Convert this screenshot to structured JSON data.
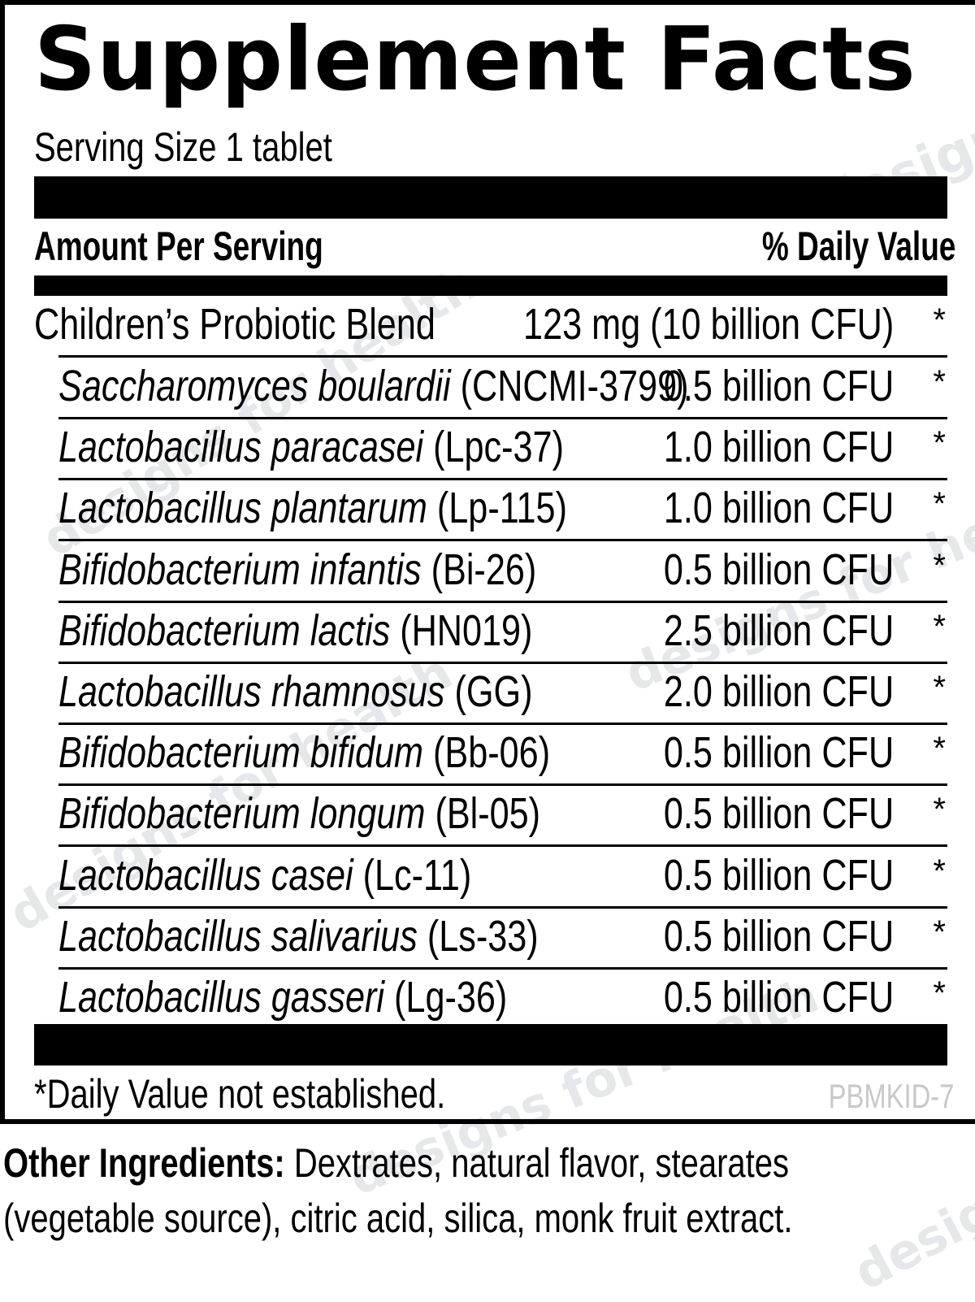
{
  "label": {
    "title": "Supplement Facts",
    "serving_size": "Serving Size 1 tablet",
    "header": {
      "amount_per_serving": "Amount Per Serving",
      "daily_value": "% Daily Value"
    },
    "blend": {
      "name": "Children’s Probiotic Blend",
      "amount": "123 mg (10 billion CFU)",
      "dv": "*"
    },
    "ingredients": [
      {
        "species": "Saccharomyces boulardii",
        "strain": "(CNCMI-3799)",
        "amount": "0.5 billion CFU",
        "dv": "*"
      },
      {
        "species": "Lactobacillus paracasei",
        "strain": "(Lpc-37)",
        "amount": "1.0 billion CFU",
        "dv": "*"
      },
      {
        "species": "Lactobacillus plantarum",
        "strain": "(Lp-115)",
        "amount": "1.0 billion CFU",
        "dv": "*"
      },
      {
        "species": "Bifidobacterium infantis",
        "strain": "(Bi-26)",
        "amount": "0.5 billion CFU",
        "dv": "*"
      },
      {
        "species": "Bifidobacterium lactis",
        "strain": "(HN019)",
        "amount": "2.5 billion CFU",
        "dv": "*"
      },
      {
        "species": "Lactobacillus rhamnosus",
        "strain": "(GG)",
        "amount": "2.0 billion CFU",
        "dv": "*"
      },
      {
        "species": "Bifidobacterium bifidum",
        "strain": "(Bb-06)",
        "amount": "0.5 billion CFU",
        "dv": "*"
      },
      {
        "species": "Bifidobacterium longum",
        "strain": "(Bl-05)",
        "amount": "0.5 billion CFU",
        "dv": "*"
      },
      {
        "species": "Lactobacillus casei",
        "strain": "(Lc-11)",
        "amount": "0.5 billion CFU",
        "dv": "*"
      },
      {
        "species": "Lactobacillus salivarius",
        "strain": "(Ls-33)",
        "amount": "0.5 billion CFU",
        "dv": "*"
      },
      {
        "species": "Lactobacillus gasseri",
        "strain": "(Lg-36)",
        "amount": "0.5 billion CFU",
        "dv": "*"
      }
    ],
    "footnote": "*Daily Value not established.",
    "product_code": "PBMKID-7"
  },
  "other_ingredients": {
    "label": "Other Ingredients:",
    "text": " Dextrates, natural flavor, stearates (vegetable source), citric acid, silica, monk fruit extract."
  },
  "watermark": {
    "text": "designs for health",
    "short": "designs",
    "color": "#e6e7ea"
  }
}
